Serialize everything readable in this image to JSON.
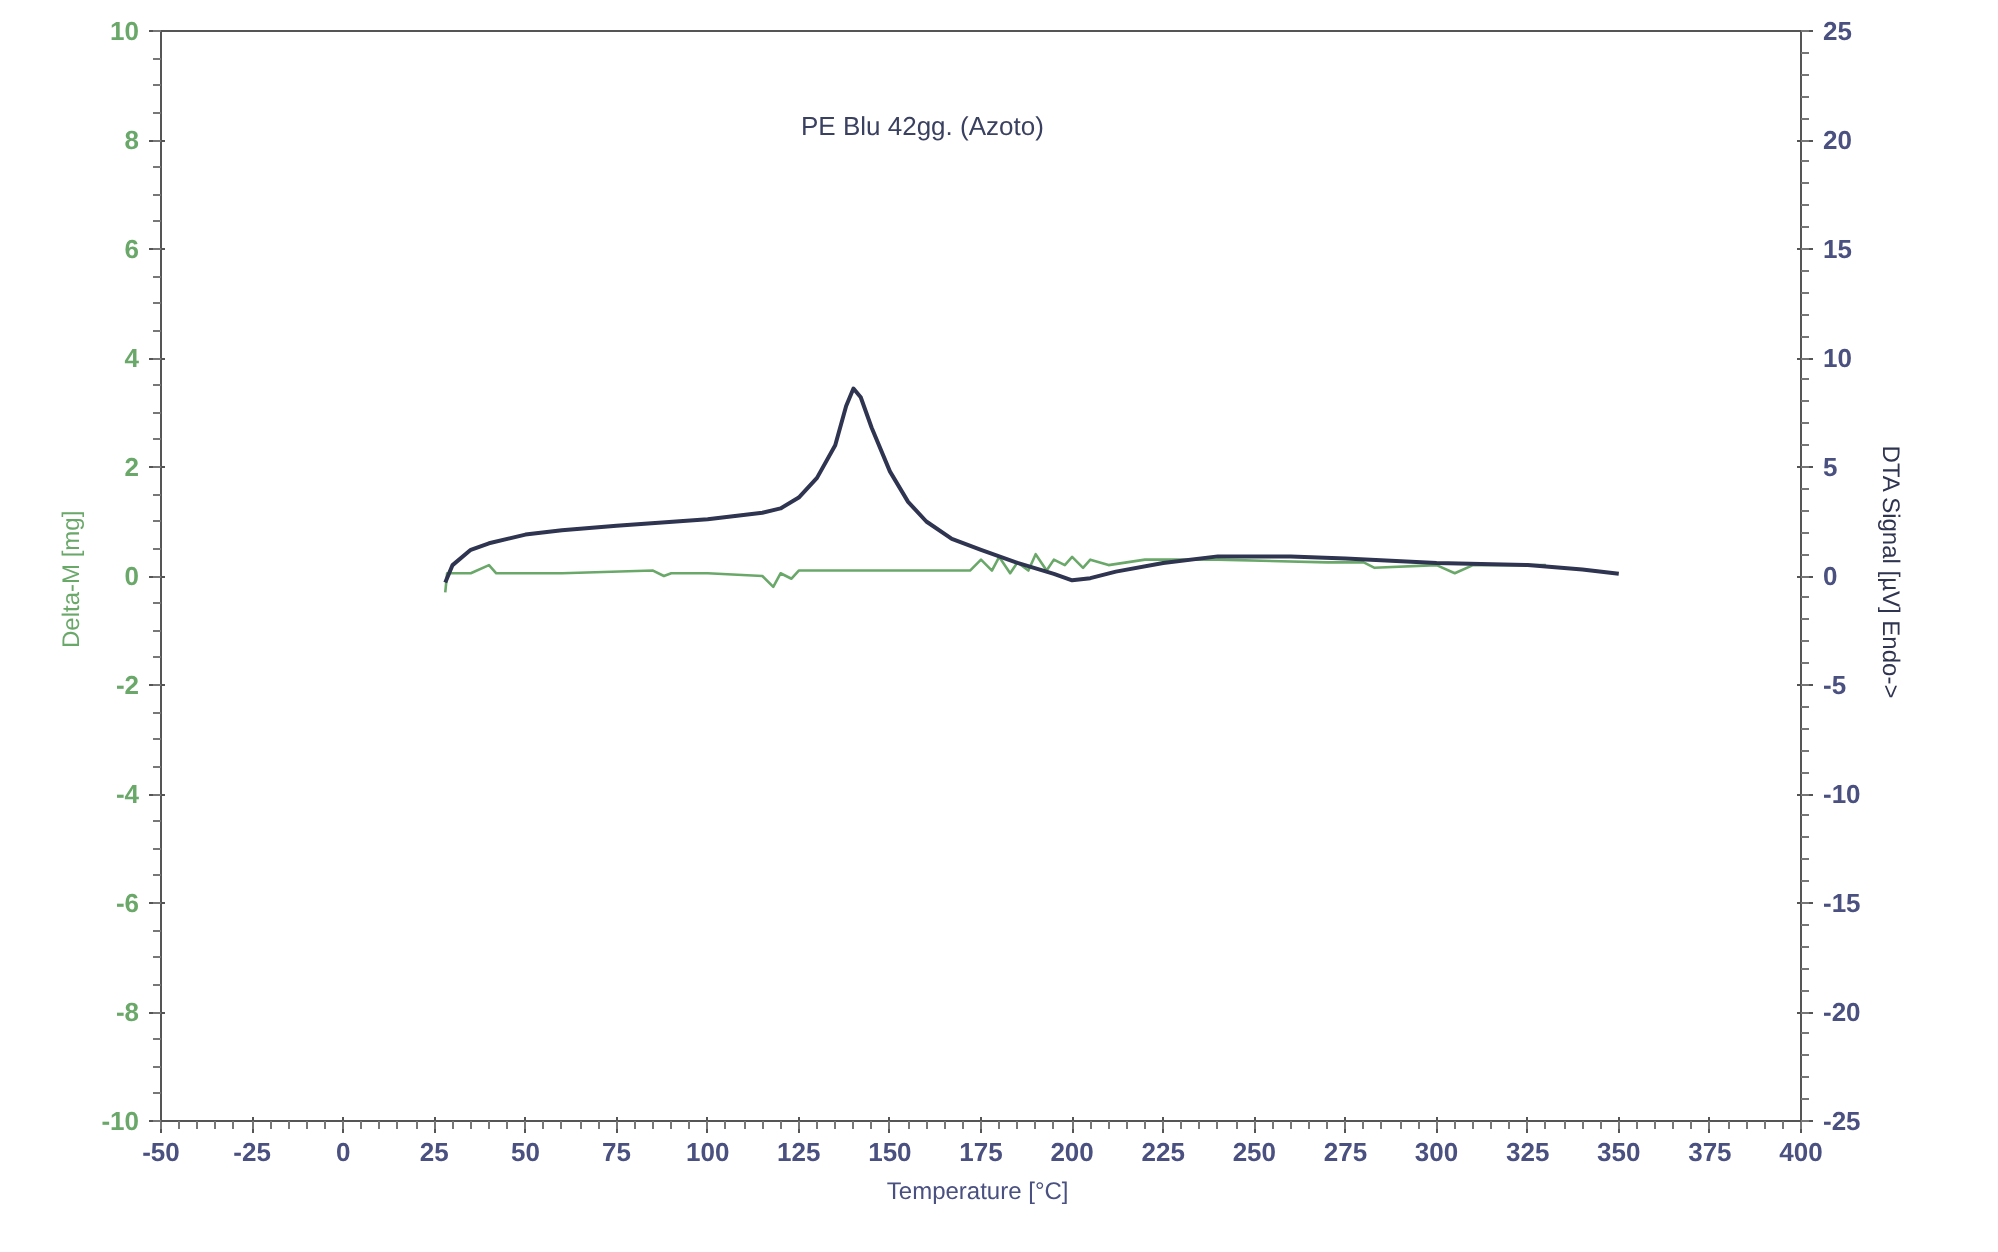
{
  "chart_data": {
    "type": "line",
    "annotations": [
      "PE Blu  42gg.  (Azoto)"
    ],
    "xlabel": "Temperature  [°C]",
    "ylabel": "Delta-M  [mg]",
    "y2label": "DTA Signal  [µV] Endo->",
    "xlim": [
      -50,
      400
    ],
    "xticks": [
      -50,
      -25,
      0,
      25,
      50,
      75,
      100,
      125,
      150,
      175,
      200,
      225,
      250,
      275,
      300,
      325,
      350,
      375,
      400
    ],
    "ylim": [
      -10,
      10
    ],
    "yticks": [
      -10,
      -8,
      -6,
      -4,
      -2,
      0,
      2,
      4,
      6,
      8,
      10
    ],
    "y2lim": [
      -25,
      25
    ],
    "y2ticks": [
      -25,
      -20,
      -15,
      -10,
      -5,
      0,
      5,
      10,
      15,
      20,
      25
    ],
    "grid": false,
    "series": [
      {
        "color": "#6aa86a",
        "x": [
          28,
          28.5,
          35,
          40,
          42,
          45,
          60,
          85,
          88,
          90,
          100,
          115,
          118,
          120,
          123,
          125,
          150,
          172,
          175,
          178,
          180,
          183,
          185,
          188,
          190,
          193,
          195,
          198,
          200,
          203,
          205,
          210,
          215,
          220,
          240,
          270,
          280,
          283,
          300,
          305,
          310,
          330
        ],
        "values": [
          -0.3,
          0.05,
          0.05,
          0.2,
          0.05,
          0.05,
          0.05,
          0.1,
          0.0,
          0.05,
          0.05,
          0.0,
          -0.2,
          0.05,
          -0.05,
          0.1,
          0.1,
          0.1,
          0.3,
          0.1,
          0.35,
          0.05,
          0.25,
          0.1,
          0.4,
          0.1,
          0.3,
          0.2,
          0.35,
          0.15,
          0.3,
          0.2,
          0.25,
          0.3,
          0.3,
          0.25,
          0.25,
          0.15,
          0.2,
          0.05,
          0.2,
          0.2
        ]
      },
      {
        "color": "#2f3450",
        "axis": "y2",
        "x": [
          28,
          30,
          35,
          40,
          50,
          60,
          75,
          100,
          115,
          120,
          125,
          130,
          135,
          138,
          140,
          142,
          145,
          150,
          155,
          160,
          167,
          175,
          185,
          195,
          200,
          205,
          212,
          225,
          240,
          260,
          275,
          300,
          325,
          340,
          350
        ],
        "values": [
          -0.3,
          0.5,
          1.2,
          1.5,
          1.9,
          2.1,
          2.3,
          2.6,
          2.9,
          3.1,
          3.6,
          4.5,
          6.0,
          7.8,
          8.6,
          8.2,
          6.8,
          4.8,
          3.4,
          2.5,
          1.7,
          1.2,
          0.6,
          0.1,
          -0.2,
          -0.1,
          0.2,
          0.6,
          0.9,
          0.9,
          0.8,
          0.6,
          0.5,
          0.3,
          0.1
        ]
      }
    ]
  }
}
